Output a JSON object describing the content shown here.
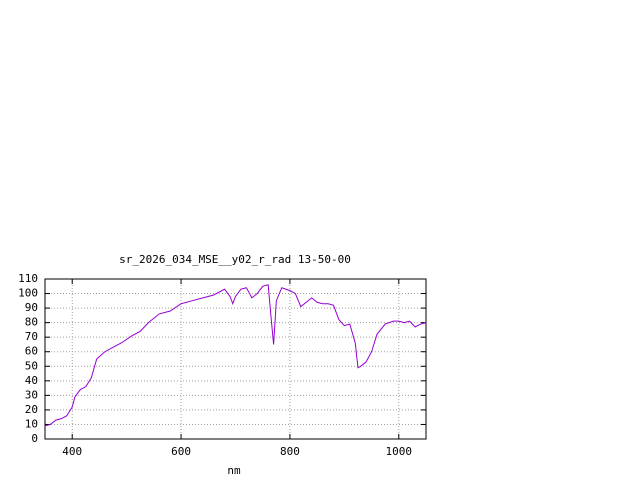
{
  "chart_data": {
    "type": "line",
    "title": "sr_2026_034_MSE__y02_r_rad 13-50-00",
    "x_label": "nm",
    "x": [
      350,
      360,
      370,
      380,
      390,
      400,
      405,
      415,
      425,
      435,
      445,
      460,
      475,
      490,
      510,
      525,
      540,
      560,
      580,
      600,
      620,
      640,
      660,
      680,
      690,
      695,
      700,
      710,
      720,
      730,
      740,
      750,
      760,
      765,
      770,
      775,
      785,
      800,
      810,
      820,
      830,
      840,
      850,
      860,
      870,
      880,
      890,
      900,
      910,
      920,
      925,
      930,
      940,
      950,
      960,
      975,
      990,
      1000,
      1010,
      1020,
      1030,
      1040,
      1050
    ],
    "values": [
      9,
      10,
      13,
      14,
      16,
      22,
      29,
      34,
      36,
      42,
      55,
      60,
      63,
      66,
      71,
      74,
      80,
      86,
      88,
      93,
      95,
      97,
      99,
      103,
      98,
      93,
      98,
      103,
      104,
      97,
      100,
      105,
      106,
      85,
      65,
      95,
      104,
      102,
      100,
      91,
      94,
      97,
      94,
      93,
      93,
      92,
      82,
      78,
      79,
      66,
      49,
      50,
      53,
      60,
      72,
      79,
      81,
      81,
      80,
      81,
      77,
      79,
      80
    ],
    "color": "#9400d3",
    "xlim": [
      350,
      1050
    ],
    "xticks": [
      400,
      600,
      800,
      1000
    ],
    "ylim": [
      0,
      110
    ],
    "yticks": [
      0,
      10,
      20,
      30,
      40,
      50,
      60,
      70,
      80,
      90,
      100,
      110
    ],
    "grid": true
  }
}
